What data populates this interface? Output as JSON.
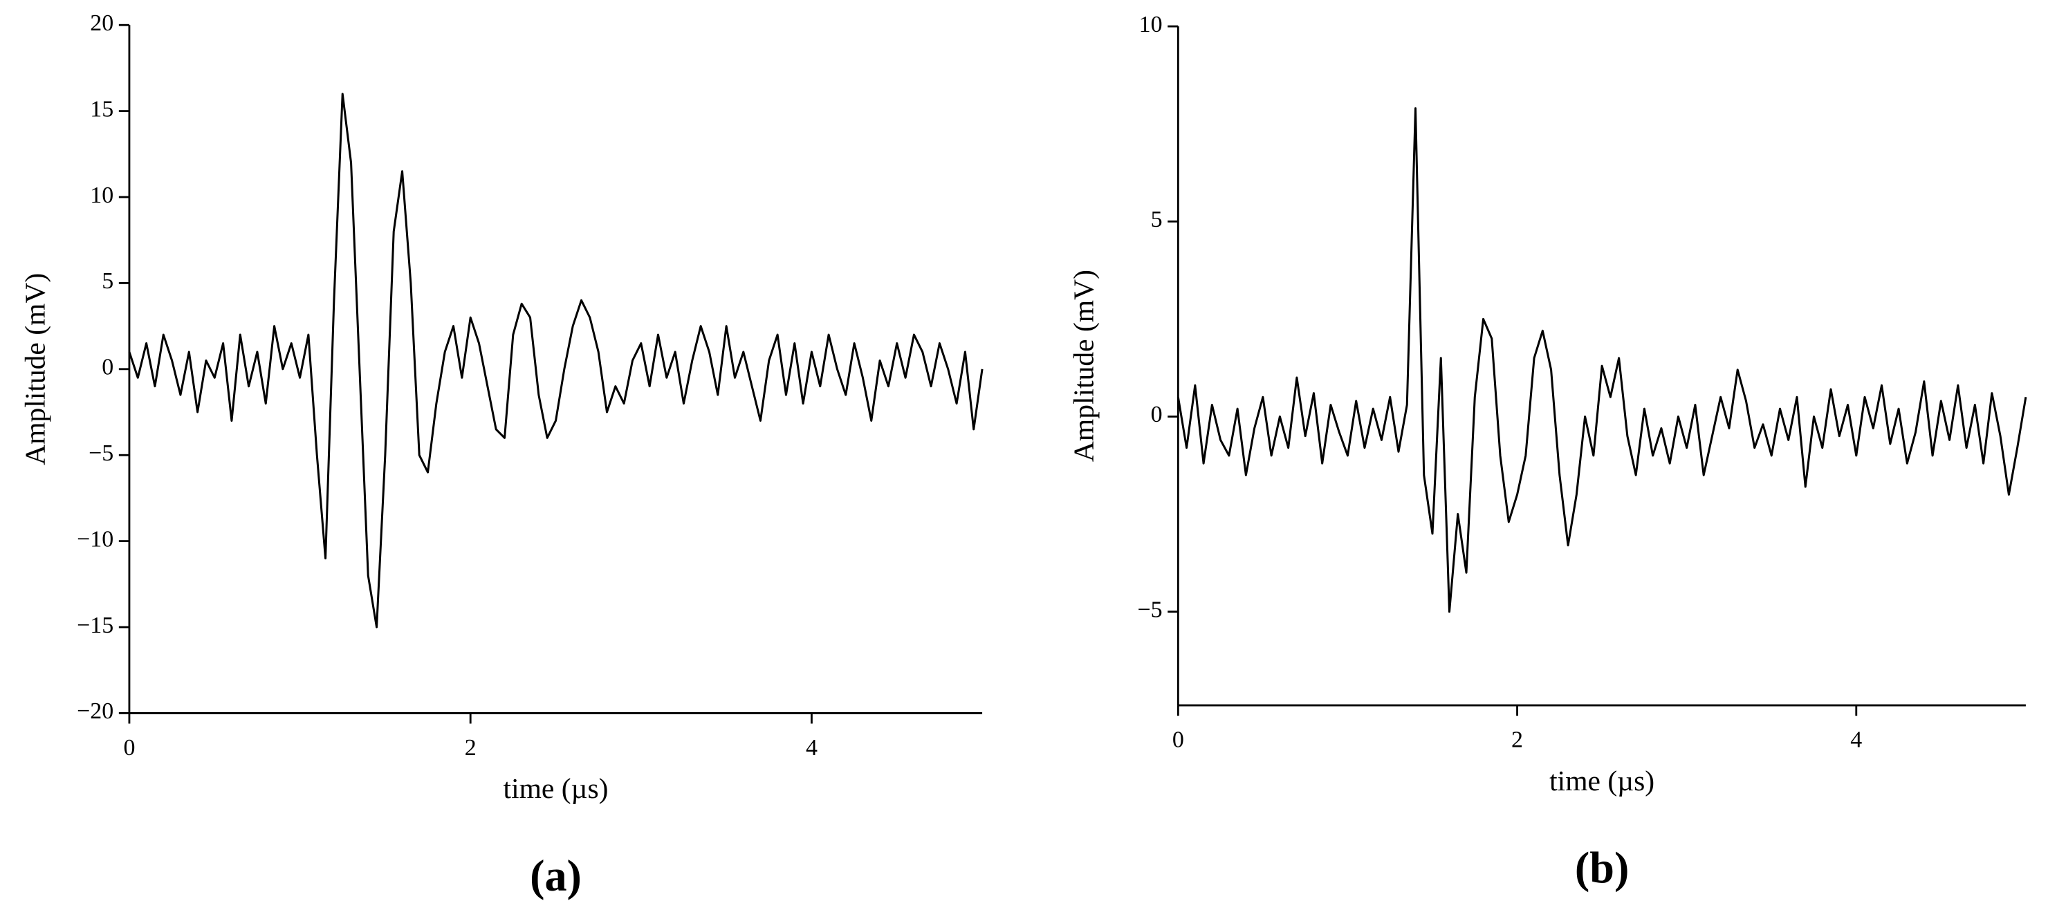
{
  "chart_data": [
    {
      "type": "line",
      "panel_label": "(a)",
      "xlabel": "time (µs)",
      "ylabel": "Amplitude (mV)",
      "color": "#000000",
      "xlim": [
        0,
        5
      ],
      "ylim": [
        -20,
        20
      ],
      "xticks": [
        0,
        2,
        4
      ],
      "yticks": [
        {
          "value": -20,
          "label": "−20"
        },
        {
          "value": -15,
          "label": "−15"
        },
        {
          "value": -10,
          "label": "−10"
        },
        {
          "value": -5,
          "label": "−5"
        },
        0,
        5,
        10,
        15,
        20
      ],
      "x": [
        0,
        0.05,
        0.1,
        0.15,
        0.2,
        0.25,
        0.3,
        0.35,
        0.4,
        0.45,
        0.5,
        0.55,
        0.6,
        0.65,
        0.7,
        0.75,
        0.8,
        0.85,
        0.9,
        0.95,
        1,
        1.05,
        1.1,
        1.15,
        1.2,
        1.25,
        1.3,
        1.35,
        1.4,
        1.45,
        1.5,
        1.55,
        1.6,
        1.65,
        1.7,
        1.75,
        1.8,
        1.85,
        1.9,
        1.95,
        2,
        2.05,
        2.1,
        2.15,
        2.2,
        2.25,
        2.3,
        2.35,
        2.4,
        2.45,
        2.5,
        2.55,
        2.6,
        2.65,
        2.7,
        2.75,
        2.8,
        2.85,
        2.9,
        2.95,
        3,
        3.05,
        3.1,
        3.15,
        3.2,
        3.25,
        3.3,
        3.35,
        3.4,
        3.45,
        3.5,
        3.55,
        3.6,
        3.65,
        3.7,
        3.75,
        3.8,
        3.85,
        3.9,
        3.95,
        4,
        4.05,
        4.1,
        4.15,
        4.2,
        4.25,
        4.3,
        4.35,
        4.4,
        4.45,
        4.5,
        4.55,
        4.6,
        4.65,
        4.7,
        4.75,
        4.8,
        4.85,
        4.9,
        4.95,
        5
      ],
      "values": [
        1,
        -0.5,
        1.5,
        -1,
        2,
        0.5,
        -1.5,
        1,
        -2.5,
        0.5,
        -0.5,
        1.5,
        -3,
        2,
        -1,
        1,
        -2,
        2.5,
        0,
        1.5,
        -0.5,
        2,
        -5,
        -11,
        4,
        16,
        12,
        0,
        -12,
        -15,
        -5,
        8,
        11.5,
        5,
        -5,
        -6,
        -2,
        1,
        2.5,
        -0.5,
        3,
        1.5,
        -1,
        -3.5,
        -4,
        2,
        3.8,
        3,
        -1.5,
        -4,
        -3,
        0,
        2.5,
        4,
        3,
        1,
        -2.5,
        -1,
        -2,
        0.5,
        1.5,
        -1,
        2,
        -0.5,
        1,
        -2,
        0.5,
        2.5,
        1,
        -1.5,
        2.5,
        -0.5,
        1,
        -1,
        -3,
        0.5,
        2,
        -1.5,
        1.5,
        -2,
        1,
        -1,
        2,
        0,
        -1.5,
        1.5,
        -0.5,
        -3,
        0.5,
        -1,
        1.5,
        -0.5,
        2,
        1,
        -1,
        1.5,
        0,
        -2,
        1,
        -3.5,
        0
      ]
    },
    {
      "type": "line",
      "panel_label": "(b)",
      "xlabel": "time (µs)",
      "ylabel": "Amplitude (mV)",
      "color": "#000000",
      "xlim": [
        0,
        5
      ],
      "ylim": [
        -7.4,
        10
      ],
      "xticks": [
        0,
        2,
        4
      ],
      "yticks": [
        {
          "value": -5,
          "label": "−5"
        },
        0,
        5,
        10
      ],
      "x": [
        0,
        0.05,
        0.1,
        0.15,
        0.2,
        0.25,
        0.3,
        0.35,
        0.4,
        0.45,
        0.5,
        0.55,
        0.6,
        0.65,
        0.7,
        0.75,
        0.8,
        0.85,
        0.9,
        0.95,
        1,
        1.05,
        1.1,
        1.15,
        1.2,
        1.25,
        1.3,
        1.35,
        1.4,
        1.45,
        1.5,
        1.55,
        1.6,
        1.65,
        1.7,
        1.75,
        1.8,
        1.85,
        1.9,
        1.95,
        2,
        2.05,
        2.1,
        2.15,
        2.2,
        2.25,
        2.3,
        2.35,
        2.4,
        2.45,
        2.5,
        2.55,
        2.6,
        2.65,
        2.7,
        2.75,
        2.8,
        2.85,
        2.9,
        2.95,
        3,
        3.05,
        3.1,
        3.15,
        3.2,
        3.25,
        3.3,
        3.35,
        3.4,
        3.45,
        3.5,
        3.55,
        3.6,
        3.65,
        3.7,
        3.75,
        3.8,
        3.85,
        3.9,
        3.95,
        4,
        4.05,
        4.1,
        4.15,
        4.2,
        4.25,
        4.3,
        4.35,
        4.4,
        4.45,
        4.5,
        4.55,
        4.6,
        4.65,
        4.7,
        4.75,
        4.8,
        4.85,
        4.9,
        4.95,
        5
      ],
      "values": [
        0.5,
        -0.8,
        0.8,
        -1.2,
        0.3,
        -0.6,
        -1,
        0.2,
        -1.5,
        -0.3,
        0.5,
        -1,
        0,
        -0.8,
        1,
        -0.5,
        0.6,
        -1.2,
        0.3,
        -0.4,
        -1,
        0.4,
        -0.8,
        0.2,
        -0.6,
        0.5,
        -0.9,
        0.3,
        7.9,
        -1.5,
        -3,
        1.5,
        -5,
        -2.5,
        -4,
        0.5,
        2.5,
        2,
        -1,
        -2.7,
        -2,
        -1,
        1.5,
        2.2,
        1.2,
        -1.5,
        -3.3,
        -2,
        0,
        -1,
        1.3,
        0.5,
        1.5,
        -0.5,
        -1.5,
        0.2,
        -1,
        -0.3,
        -1.2,
        0,
        -0.8,
        0.3,
        -1.5,
        -0.5,
        0.5,
        -0.3,
        1.2,
        0.4,
        -0.8,
        -0.2,
        -1,
        0.2,
        -0.6,
        0.5,
        -1.8,
        0,
        -0.8,
        0.7,
        -0.5,
        0.3,
        -1,
        0.5,
        -0.3,
        0.8,
        -0.7,
        0.2,
        -1.2,
        -0.4,
        0.9,
        -1,
        0.4,
        -0.6,
        0.8,
        -0.8,
        0.3,
        -1.2,
        0.6,
        -0.5,
        -2,
        -0.8,
        0.5
      ]
    }
  ]
}
